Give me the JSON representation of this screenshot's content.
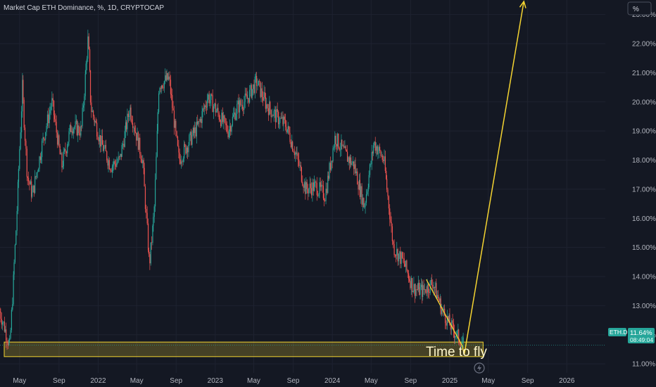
{
  "chart_data": {
    "type": "line",
    "title": "Market Cap ETH Dominance, %, 1D, CRYPTOCAP",
    "currency_label": "%",
    "x_ticks": [
      "May",
      "Sep",
      "2022",
      "May",
      "Sep",
      "2023",
      "May",
      "Sep",
      "2024",
      "May",
      "Sep",
      "2025",
      "May",
      "Sep",
      "2026"
    ],
    "y_ticks": [
      "23.00%",
      "22.00%",
      "21.00%",
      "20.00%",
      "19.00%",
      "18.00%",
      "17.00%",
      "16.00%",
      "15.00%",
      "14.00%",
      "13.00%",
      "12.00%",
      "11.00%"
    ],
    "ylim": [
      10.69,
      23.5
    ],
    "xlim": [
      "2021-03-01",
      "2026-05-01"
    ],
    "series": [
      {
        "x": [
          "2021-03-01",
          "2021-04-01",
          "2021-04-20",
          "2021-05-10",
          "2021-05-25",
          "2021-06-10",
          "2021-07-10",
          "2021-08-10",
          "2021-09-10",
          "2021-10-10",
          "2021-11-10",
          "2021-12-01",
          "2021-12-10",
          "2022-01-10",
          "2022-02-10",
          "2022-03-10",
          "2022-04-10",
          "2022-05-20",
          "2022-06-10",
          "2022-06-25",
          "2022-07-10",
          "2022-08-10",
          "2022-09-10",
          "2022-10-10",
          "2022-11-10",
          "2022-12-10",
          "2023-01-10",
          "2023-02-10",
          "2023-03-10",
          "2023-04-10",
          "2023-05-10",
          "2023-06-10",
          "2023-07-10",
          "2023-08-10",
          "2023-09-10",
          "2023-10-10",
          "2023-11-10",
          "2023-12-10",
          "2024-01-10",
          "2024-02-10",
          "2024-03-10",
          "2024-04-10",
          "2024-05-10",
          "2024-06-10",
          "2024-07-10",
          "2024-08-10",
          "2024-09-10",
          "2024-10-10",
          "2024-11-10",
          "2024-12-10",
          "2025-01-10",
          "2025-02-15"
        ],
        "values": [
          12.8,
          11.6,
          15.5,
          20.5,
          17.5,
          16.8,
          18.5,
          20.0,
          17.8,
          19.2,
          19.0,
          22.2,
          19.8,
          18.6,
          17.8,
          18.0,
          19.8,
          18.0,
          14.4,
          16.2,
          20.6,
          20.8,
          18.0,
          18.6,
          19.2,
          20.2,
          19.6,
          19.0,
          19.8,
          20.1,
          20.7,
          19.9,
          19.5,
          19.2,
          18.2,
          17.0,
          17.1,
          16.8,
          18.8,
          18.2,
          17.8,
          16.4,
          18.6,
          18.0,
          15.0,
          14.5,
          13.6,
          13.5,
          13.8,
          12.8,
          12.2,
          11.64
        ]
      }
    ],
    "projection": {
      "x": [
        "2025-02-15",
        "2025-08-20"
      ],
      "values": [
        11.3,
        23.5
      ]
    },
    "trendline": {
      "x": [
        "2024-10-20",
        "2025-02-10"
      ],
      "values": [
        13.9,
        11.6
      ]
    },
    "zone": {
      "x": [
        "2021-03-01",
        "2025-04-15"
      ],
      "values": [
        11.25,
        11.75
      ]
    },
    "last_price": {
      "symbol": "ETH.D",
      "value": "11.64%",
      "countdown": "08:49:04"
    },
    "annotation": "Time to fly",
    "colors": {
      "background": "#141823",
      "up": "#26a69a",
      "down": "#ef5350",
      "highlight": "#f5d431",
      "grid": "#1e2230",
      "axis_text": "#b2b5be"
    }
  }
}
